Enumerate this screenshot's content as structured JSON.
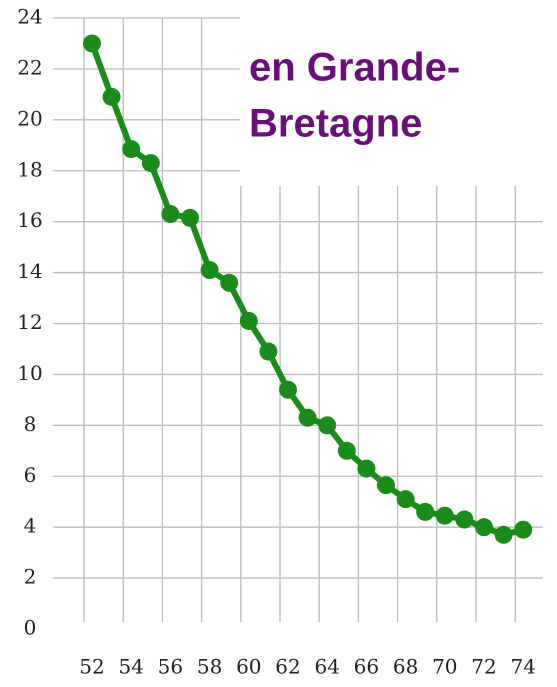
{
  "chart_data": {
    "type": "line",
    "title": [
      "en Grande-",
      "Bretagne"
    ],
    "x": [
      52,
      53,
      54,
      55,
      56,
      57,
      58,
      59,
      60,
      61,
      62,
      63,
      64,
      65,
      66,
      67,
      68,
      69,
      70,
      71,
      72,
      73,
      74
    ],
    "series": [
      {
        "name": "Grande-Bretagne",
        "color": "#1a8c1a",
        "values": [
          23.0,
          20.9,
          18.85,
          18.3,
          16.3,
          16.15,
          14.1,
          13.6,
          12.1,
          10.9,
          9.4,
          8.3,
          8.0,
          7.0,
          6.3,
          5.65,
          5.1,
          4.6,
          4.45,
          4.3,
          4.0,
          3.7,
          3.9
        ]
      }
    ],
    "xlim": [
      50,
      75
    ],
    "xticks": [
      52,
      54,
      56,
      58,
      60,
      62,
      64,
      66,
      68,
      70,
      72,
      74
    ],
    "ylim": [
      0,
      24
    ],
    "yticks": [
      0,
      2,
      4,
      6,
      8,
      10,
      12,
      14,
      16,
      18,
      20,
      22,
      24
    ],
    "grid": true,
    "title_color": "#6a0f7a"
  }
}
